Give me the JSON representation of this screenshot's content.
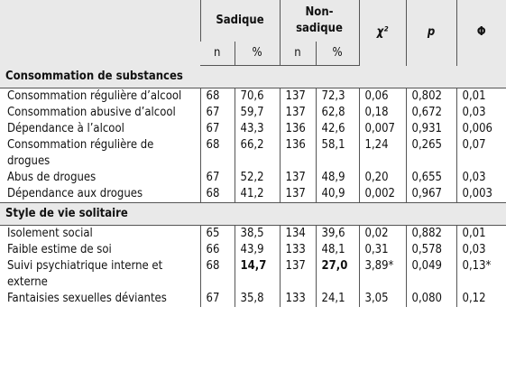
{
  "header": {
    "groups": [
      "Sadique",
      "Non-sadique"
    ],
    "stats": [
      "χ²",
      "p",
      "Φ"
    ],
    "subheads": [
      "n",
      "%",
      "n",
      "%"
    ]
  },
  "sections": [
    {
      "title": "Consommation de substances",
      "rows": [
        {
          "label": "Consommation régulière d’alcool",
          "cells": [
            "68",
            "70,6",
            "137",
            "72,3",
            "0,06",
            "0,802",
            "0,01"
          ]
        },
        {
          "label": "Consommation abusive d’alcool",
          "cells": [
            "67",
            "59,7",
            "137",
            "62,8",
            "0,18",
            "0,672",
            "0,03"
          ]
        },
        {
          "label": "Dépendance à l’alcool",
          "cells": [
            "67",
            "43,3",
            "136",
            "42,6",
            "0,007",
            "0,931",
            "0,006"
          ]
        },
        {
          "label": "Consommation régulière de drogues",
          "cells": [
            "68",
            "66,2",
            "136",
            "58,1",
            "1,24",
            "0,265",
            "0,07"
          ]
        },
        {
          "label": "Abus de drogues",
          "cells": [
            "67",
            "52,2",
            "137",
            "48,9",
            "0,20",
            "0,655",
            "0,03"
          ]
        },
        {
          "label": "Dépendance aux drogues",
          "cells": [
            "68",
            "41,2",
            "137",
            "40,9",
            "0,002",
            "0,967",
            "0,003"
          ]
        }
      ]
    },
    {
      "title": "Style de vie solitaire",
      "rows": [
        {
          "label": "Isolement social",
          "cells": [
            "65",
            "38,5",
            "134",
            "39,6",
            "0,02",
            "0,882",
            "0,01"
          ]
        },
        {
          "label": "Faible estime de soi",
          "cells": [
            "66",
            "43,9",
            "133",
            "48,1",
            "0,31",
            "0,578",
            "0,03"
          ]
        },
        {
          "label": "Suivi psychiatrique interne et externe",
          "cells": [
            "68",
            "14,7",
            "137",
            "27,0",
            "3,89*",
            "0,049",
            "0,13*"
          ],
          "bold_cells": [
            1,
            3
          ]
        },
        {
          "label": "Fantaisies sexuelles déviantes",
          "cells": [
            "67",
            "35,8",
            "133",
            "24,1",
            "3,05",
            "0,080",
            "0,12"
          ]
        }
      ]
    }
  ]
}
